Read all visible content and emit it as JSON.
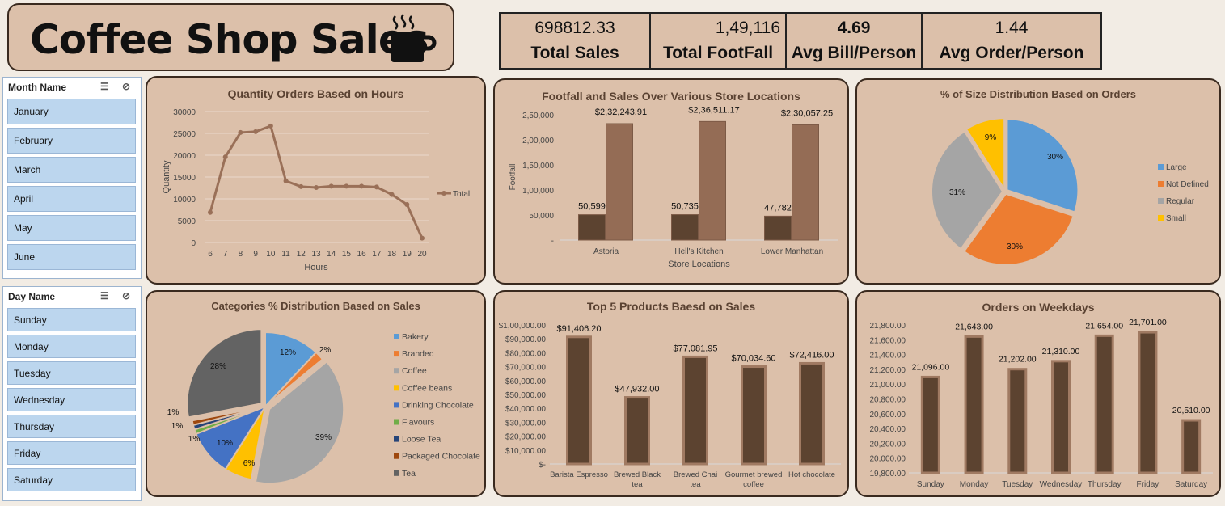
{
  "header": {
    "title": "Coffee Shop Sales",
    "cup_icon": "coffee-cup-icon"
  },
  "kpis": [
    {
      "value": "698812.33",
      "label": "Total Sales"
    },
    {
      "value": "1,49,116",
      "label": "Total FootFall"
    },
    {
      "value": "4.69",
      "label": "Avg Bill/Person"
    },
    {
      "value": "1.44",
      "label": "Avg Order/Person"
    }
  ],
  "slicers": {
    "month": {
      "title": "Month Name",
      "items": [
        "January",
        "February",
        "March",
        "April",
        "May",
        "June"
      ]
    },
    "day": {
      "title": "Day Name",
      "items": [
        "Sunday",
        "Monday",
        "Tuesday",
        "Wednesday",
        "Thursday",
        "Friday",
        "Saturday"
      ]
    }
  },
  "colors": {
    "bar_dark": "#5c4330",
    "bar_light": "#946c55",
    "line": "#9a7058",
    "pie_blue": "#5b9bd5",
    "pie_orange": "#ed7d31",
    "pie_gray": "#a5a5a5",
    "pie_yellow": "#ffc000",
    "pie_darkblue": "#4472c4",
    "pie_green": "#70ad47",
    "pie_navy": "#264478",
    "pie_brown": "#9e480e",
    "pie_darkgray": "#636363"
  },
  "chart_data": [
    {
      "id": "hours",
      "type": "line",
      "title": "Quantity Orders Based on Hours",
      "xlabel": "Hours",
      "ylabel": "Quantity",
      "x": [
        6,
        7,
        8,
        9,
        10,
        11,
        12,
        13,
        14,
        15,
        16,
        17,
        18,
        19,
        20
      ],
      "series": [
        {
          "name": "Total",
          "values": [
            6900,
            19600,
            25200,
            25400,
            26700,
            14100,
            12800,
            12600,
            12900,
            12900,
            12900,
            12700,
            11000,
            8700,
            1000
          ]
        }
      ],
      "ylim": [
        0,
        30000
      ],
      "yticks": [
        "0",
        "5000",
        "10000",
        "15000",
        "20000",
        "25000",
        "30000"
      ],
      "legend": "right"
    },
    {
      "id": "stores",
      "type": "bar",
      "title": "Footfall and Sales Over Various Store Locations",
      "xlabel": "Store Locations",
      "ylabel": "Footfall",
      "categories": [
        "Astoria",
        "Hell's Kitchen",
        "Lower Manhattan"
      ],
      "series": [
        {
          "values": [
            50599,
            50735,
            47782
          ],
          "labels": [
            "50,599",
            "50,735",
            "47,782"
          ]
        },
        {
          "values": [
            232243.91,
            236511.17,
            230057.25
          ],
          "labels": [
            "$2,32,243.91",
            "$2,36,511.17",
            "$2,30,057.25"
          ]
        }
      ],
      "ylim": [
        0,
        250000
      ],
      "yticks": [
        "-",
        "50,000",
        "1,00,000",
        "1,50,000",
        "2,00,000",
        "2,50,000"
      ]
    },
    {
      "id": "size",
      "type": "pie",
      "title": "% of Size Distribution Based on Orders",
      "labels": [
        "Large",
        "Not Defined",
        "Regular",
        "Small"
      ],
      "values": [
        30,
        30,
        31,
        9
      ],
      "pct": [
        "30%",
        "30%",
        "31%",
        "9%"
      ],
      "legend": "right"
    },
    {
      "id": "categories",
      "type": "pie",
      "title": "Categories % Distribution Based on Sales",
      "labels": [
        "Bakery",
        "Branded",
        "Coffee",
        "Coffee beans",
        "Drinking Chocolate",
        "Flavours",
        "Loose Tea",
        "Packaged Chocolate",
        "Tea"
      ],
      "values": [
        12,
        2,
        39,
        6,
        10,
        1,
        1,
        1,
        28
      ],
      "pct": [
        "12%",
        "2%",
        "39%",
        "6%",
        "10%",
        "1%",
        "1%",
        "1%",
        "28%"
      ],
      "legend": "right"
    },
    {
      "id": "products",
      "type": "bar",
      "title": "Top 5 Products Baesd on Sales",
      "categories": [
        "Barista Espresso",
        "Brewed Black tea",
        "Brewed Chai tea",
        "Gourmet brewed coffee",
        "Hot chocolate"
      ],
      "values": [
        91406.2,
        47932.0,
        77081.95,
        70034.6,
        72416.0
      ],
      "labels": [
        "$91,406.20",
        "$47,932.00",
        "$77,081.95",
        "$70,034.60",
        "$72,416.00"
      ],
      "ylim": [
        0,
        100000
      ],
      "yticks": [
        "$-",
        "$10,000.00",
        "$20,000.00",
        "$30,000.00",
        "$40,000.00",
        "$50,000.00",
        "$60,000.00",
        "$70,000.00",
        "$80,000.00",
        "$90,000.00",
        "$1,00,000.00"
      ]
    },
    {
      "id": "weekdays",
      "type": "bar",
      "title": "Orders on Weekdays",
      "categories": [
        "Sunday",
        "Monday",
        "Tuesday",
        "Wednesday",
        "Thursday",
        "Friday",
        "Saturday"
      ],
      "values": [
        21096,
        21643,
        21202,
        21310,
        21654,
        21701,
        20510
      ],
      "labels": [
        "21,096.00",
        "21,643.00",
        "21,202.00",
        "21,310.00",
        "21,654.00",
        "21,701.00",
        "20,510.00"
      ],
      "ylim": [
        19800,
        21800
      ],
      "yticks": [
        "19,800.00",
        "20,000.00",
        "20,200.00",
        "20,400.00",
        "20,600.00",
        "20,800.00",
        "21,000.00",
        "21,200.00",
        "21,400.00",
        "21,600.00",
        "21,800.00"
      ]
    }
  ]
}
